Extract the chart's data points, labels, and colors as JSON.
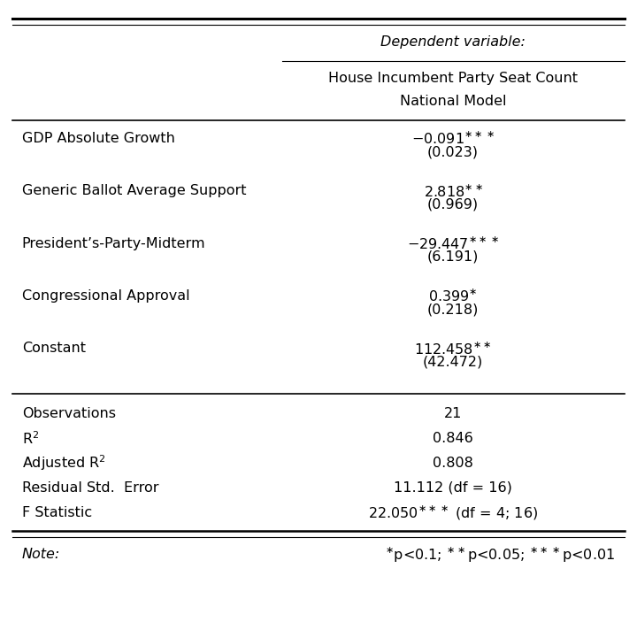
{
  "dep_var_label": "Dependent variable:",
  "col_header_line1": "House Incumbent Party Seat Count",
  "col_header_line2": "National Model",
  "rows": [
    {
      "label": "GDP Absolute Growth",
      "coef": "−0.091",
      "stars": "***",
      "se": "(0.023)"
    },
    {
      "label": "Generic Ballot Average Support",
      "coef": "2.818",
      "stars": "**",
      "se": "(0.969)"
    },
    {
      "label": "President’s-Party-Midterm",
      "coef": "−29.447",
      "stars": "***",
      "se": "(6.191)"
    },
    {
      "label": "Congressional Approval",
      "coef": "0.399",
      "stars": "*",
      "se": "(0.218)"
    },
    {
      "label": "Constant",
      "coef": "112.458",
      "stars": "**",
      "se": "(42.472)"
    }
  ],
  "stats": [
    {
      "label": "Observations",
      "value": "21",
      "stars": ""
    },
    {
      "label": "R$^{2}$",
      "value": "0.846",
      "stars": ""
    },
    {
      "label": "Adjusted R$^{2}$",
      "value": "0.808",
      "stars": ""
    },
    {
      "label": "Residual Std.  Error",
      "value": "11.112 (df = 16)",
      "stars": ""
    },
    {
      "label": "F Statistic",
      "value": "22.050",
      "stars": "***",
      "value_suffix": " (df = 4; 16)"
    }
  ],
  "bg_color": "#ffffff",
  "text_color": "#000000",
  "line_color": "#000000",
  "font_size": 11.5,
  "col_split": 0.44
}
